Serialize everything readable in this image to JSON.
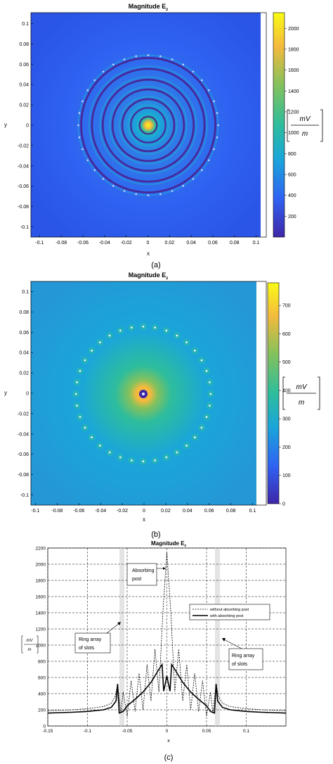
{
  "panels": [
    {
      "title": "Magnitude E",
      "title_sub": "z",
      "xlabel": "x",
      "ylabel": "y",
      "caption": "(a)",
      "unit_num": "mV",
      "unit_den": "m",
      "xticks": [
        "-0.1",
        "-0.08",
        "-0.06",
        "-0.04",
        "-0.02",
        "0",
        "0.02",
        "0.04",
        "0.06",
        "0.08",
        "0.1"
      ],
      "yticks": [
        "0.1",
        "0.08",
        "0.06",
        "0.04",
        "0.02",
        "0",
        "-0.02",
        "-0.04",
        "-0.06",
        "-0.08",
        "-0.1"
      ],
      "cbar_ticks": [
        "2000",
        "1800",
        "1600",
        "1400",
        "1200",
        "1000",
        "800",
        "600",
        "400",
        "200"
      ]
    },
    {
      "title": "Magnitude E",
      "title_sub": "z",
      "xlabel": "x",
      "ylabel": "y",
      "caption": "(b)",
      "unit_num": "mV",
      "unit_den": "m",
      "xticks": [
        "-0.1",
        "-0.08",
        "-0.06",
        "-0.04",
        "-0.02",
        "0",
        "0.02",
        "0.04",
        "0.06",
        "0.08",
        "0.1"
      ],
      "yticks": [
        "0.1",
        "0.08",
        "0.06",
        "0.04",
        "0.02",
        "0",
        "-0.02",
        "-0.04",
        "-0.06",
        "-0.08",
        "-0.1"
      ],
      "cbar_ticks": [
        "700",
        "600",
        "500",
        "400",
        "300",
        "200",
        "100",
        "0"
      ]
    },
    {
      "title": "Magnitude E",
      "title_sub": "z",
      "xlabel": "x",
      "caption": "(c)",
      "unit_num": "mV",
      "unit_den": "m",
      "xticks": [
        "-0.15",
        "-0.1",
        "-0.05",
        "0",
        "0.05",
        "0.1"
      ],
      "yticks": [
        "2200",
        "2000",
        "1800",
        "1600",
        "1400",
        "1200",
        "1000",
        "800",
        "600",
        "400",
        "200",
        "0"
      ],
      "legend": [
        "without absorbing post",
        "with absorbing post"
      ],
      "annotations": {
        "absorbing_post": [
          "Absorbing",
          "post"
        ],
        "ring_left": [
          "Ring array",
          "of slots"
        ],
        "ring_right": [
          "Ring array",
          "of slots"
        ]
      }
    }
  ],
  "colors": {
    "colormap": [
      "#3e26a8",
      "#2f62f2",
      "#1aa6d9",
      "#2ebd9c",
      "#85c15c",
      "#f4ba3d",
      "#f9fb15"
    ]
  },
  "chart_data": [
    {
      "type": "heatmap",
      "title": "Magnitude Ez",
      "xlabel": "x",
      "ylabel": "y",
      "xlim": [
        -0.11,
        0.11
      ],
      "ylim": [
        -0.11,
        0.11
      ],
      "colorbar": {
        "range": [
          0,
          2150
        ],
        "unit": "mV/m"
      },
      "peak_value": 2150,
      "peak_location": [
        0,
        0
      ],
      "ring_array_radius": 0.062
    },
    {
      "type": "heatmap",
      "title": "Magnitude Ez",
      "xlabel": "x",
      "ylabel": "y",
      "xlim": [
        -0.11,
        0.11
      ],
      "ylim": [
        -0.11,
        0.11
      ],
      "colorbar": {
        "range": [
          0,
          780
        ],
        "unit": "mV/m"
      },
      "peak_value": 780,
      "absorbing_post_location": [
        0,
        0
      ],
      "ring_array_radius": 0.062
    },
    {
      "type": "line",
      "title": "Magnitude Ez",
      "xlabel": "x",
      "ylabel": "mV/m",
      "xlim": [
        -0.15,
        0.15
      ],
      "ylim": [
        0,
        2200
      ],
      "grid": true,
      "legend_position": "top-right",
      "series": [
        {
          "name": "without absorbing post",
          "style": "dashed",
          "x": [
            -0.15,
            -0.12,
            -0.1,
            -0.08,
            -0.07,
            -0.065,
            -0.062,
            -0.058,
            -0.055,
            -0.05,
            -0.045,
            -0.04,
            -0.035,
            -0.03,
            -0.025,
            -0.02,
            -0.015,
            -0.01,
            -0.005,
            0,
            0.005,
            0.01,
            0.015,
            0.02,
            0.025,
            0.03,
            0.035,
            0.04,
            0.045,
            0.05,
            0.055,
            0.058,
            0.062,
            0.065,
            0.07,
            0.08,
            0.1,
            0.12,
            0.15
          ],
          "y": [
            190,
            200,
            215,
            240,
            280,
            370,
            520,
            160,
            420,
            120,
            560,
            180,
            650,
            200,
            760,
            310,
            950,
            420,
            1400,
            2150,
            1400,
            420,
            950,
            310,
            760,
            200,
            650,
            180,
            560,
            120,
            420,
            160,
            520,
            370,
            280,
            240,
            215,
            200,
            190
          ]
        },
        {
          "name": "with absorbing post",
          "style": "solid",
          "x": [
            -0.15,
            -0.12,
            -0.1,
            -0.08,
            -0.07,
            -0.064,
            -0.062,
            -0.06,
            -0.055,
            -0.05,
            -0.04,
            -0.03,
            -0.02,
            -0.01,
            -0.006,
            -0.004,
            -0.002,
            0,
            0.002,
            0.004,
            0.006,
            0.01,
            0.02,
            0.03,
            0.04,
            0.05,
            0.055,
            0.06,
            0.062,
            0.064,
            0.07,
            0.08,
            0.1,
            0.12,
            0.15
          ],
          "y": [
            160,
            170,
            180,
            200,
            230,
            310,
            520,
            160,
            180,
            250,
            330,
            420,
            540,
            700,
            760,
            430,
            520,
            620,
            520,
            430,
            760,
            700,
            540,
            420,
            330,
            250,
            180,
            160,
            520,
            310,
            230,
            200,
            180,
            170,
            160
          ]
        }
      ]
    }
  ]
}
